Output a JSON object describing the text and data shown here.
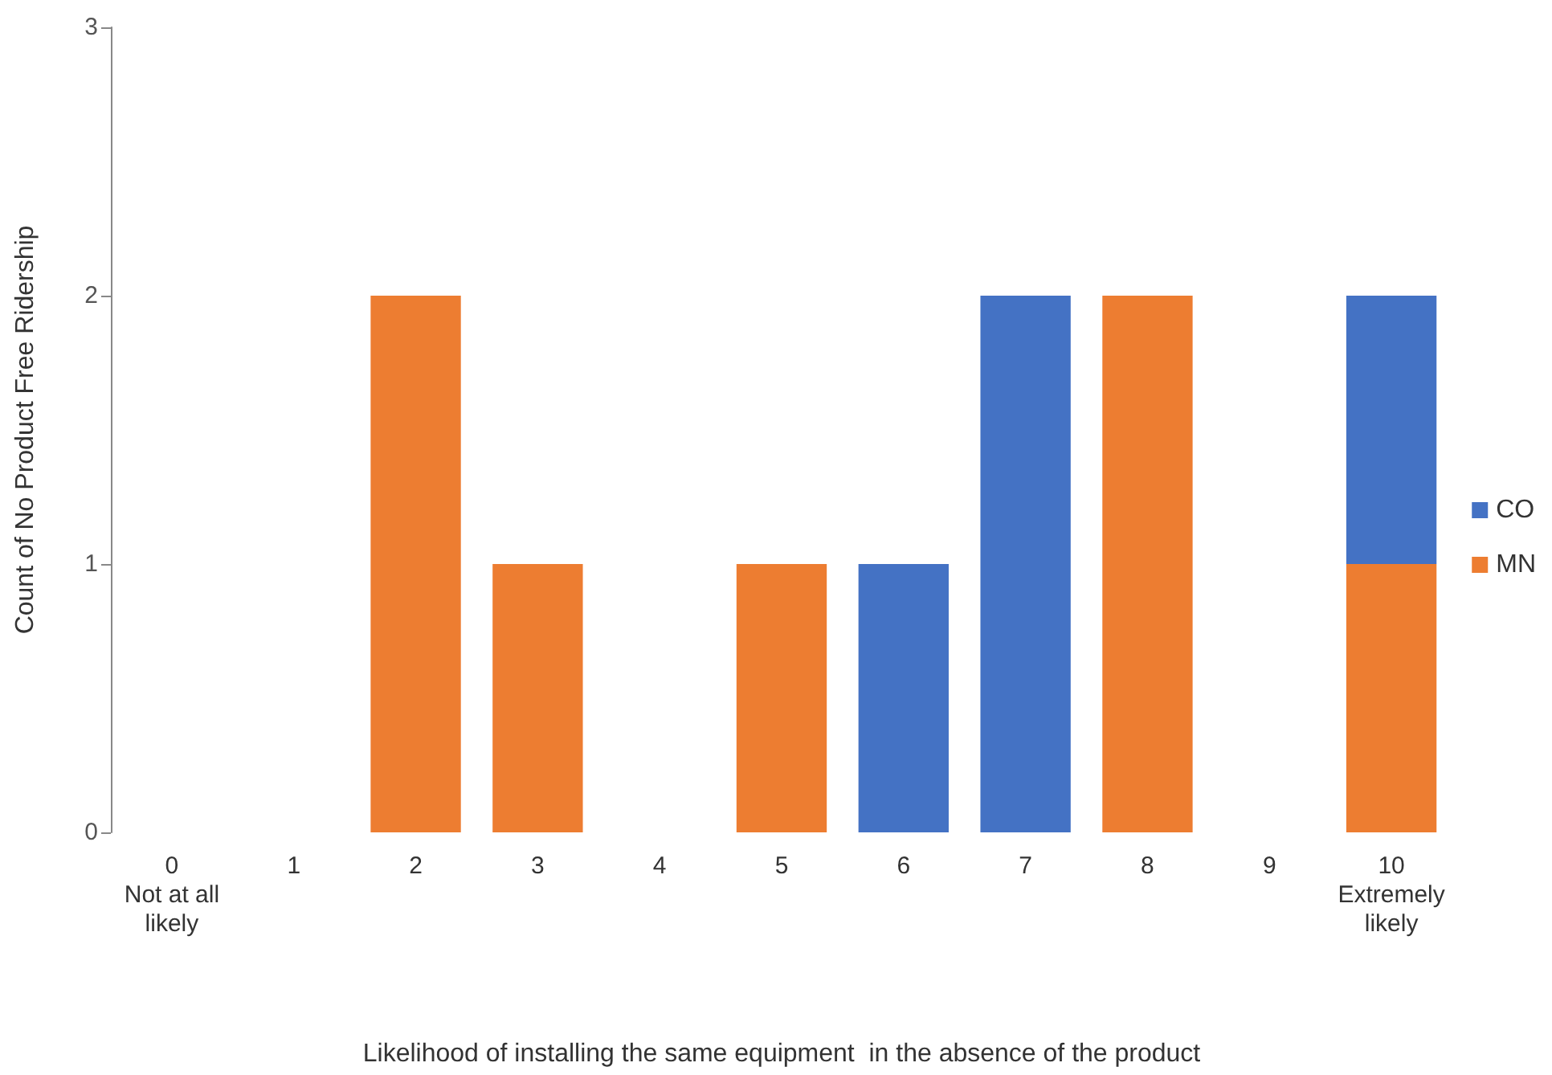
{
  "chart_data": {
    "type": "bar",
    "stacked": true,
    "xlabel": "Likelihood of installing the same equipment  in the absence of the product",
    "ylabel": "Count of No Product Free Ridership",
    "categories": [
      "0\nNot at all\nlikely",
      "1",
      "2",
      "3",
      "4",
      "5",
      "6",
      "7",
      "8",
      "9",
      "10\nExtremely\nlikely"
    ],
    "series": [
      {
        "name": "MN",
        "color": "#ed7d31",
        "values": [
          0,
          0,
          2,
          1,
          0,
          1,
          0,
          0,
          2,
          0,
          1
        ]
      },
      {
        "name": "CO",
        "color": "#4472c4",
        "values": [
          0,
          0,
          0,
          0,
          0,
          0,
          1,
          2,
          0,
          0,
          1
        ]
      }
    ],
    "ylim": [
      0,
      3
    ],
    "yticks": [
      0,
      1,
      2,
      3
    ],
    "grid": false,
    "legend": "right"
  }
}
